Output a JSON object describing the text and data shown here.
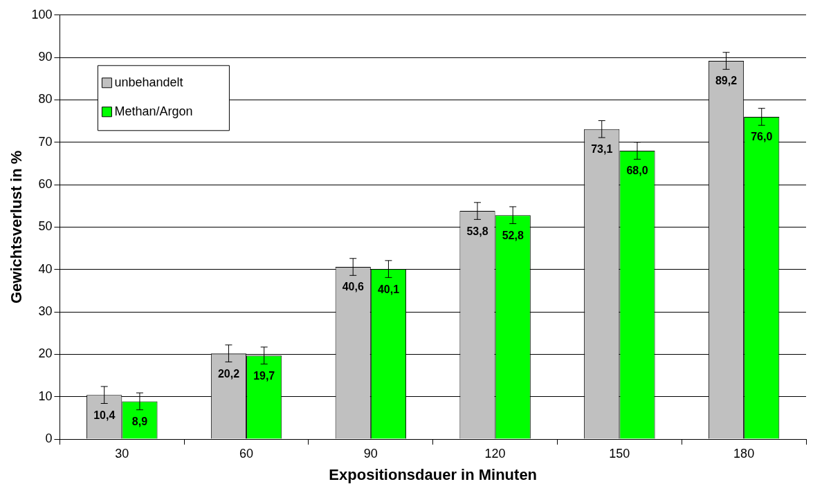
{
  "chart_data": {
    "type": "bar",
    "xlabel": "Expositionsdauer in Minuten",
    "ylabel": "Gewichtsverlust in %",
    "categories": [
      "30",
      "60",
      "90",
      "120",
      "150",
      "180"
    ],
    "series": [
      {
        "name": "unbehandelt",
        "color": "#c0c0c0",
        "values": [
          10.4,
          20.2,
          40.6,
          53.8,
          73.1,
          89.2
        ],
        "value_labels": [
          "10,4",
          "20,2",
          "40,6",
          "53,8",
          "73,1",
          "89,2"
        ],
        "errors": [
          2,
          2,
          2,
          2,
          2,
          2
        ]
      },
      {
        "name": "Methan/Argon",
        "color": "#00ff00",
        "values": [
          8.9,
          19.7,
          40.1,
          52.8,
          68.0,
          76.0
        ],
        "value_labels": [
          "8,9",
          "19,7",
          "40,1",
          "52,8",
          "68,0",
          "76,0"
        ],
        "errors": [
          2,
          2,
          2,
          2,
          2,
          2
        ]
      }
    ],
    "ylim": [
      0,
      100
    ],
    "yticks": [
      0,
      10,
      20,
      30,
      40,
      50,
      60,
      70,
      80,
      90,
      100
    ],
    "grid": "y",
    "legend": "top left"
  }
}
